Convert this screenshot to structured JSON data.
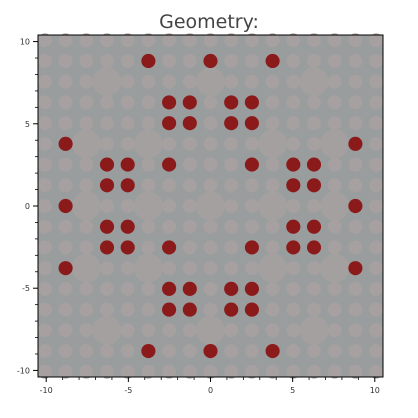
{
  "chart_data": {
    "type": "scatter",
    "title": "Geometry:",
    "xlabel": "",
    "ylabel": "",
    "xlim": [
      -10.5,
      10.5
    ],
    "ylim": [
      -10.4,
      10.4
    ],
    "grid": false,
    "x_ticks": [
      -10,
      -5,
      0,
      5,
      10
    ],
    "y_ticks": [
      10,
      5,
      0,
      -5,
      -10
    ],
    "grid_values": [
      -10.08,
      -8.82,
      -7.56,
      -6.3,
      -5.04,
      -3.78,
      -2.52,
      -1.26,
      0.0,
      1.26,
      2.52,
      3.78,
      5.04,
      6.3,
      7.56,
      8.82,
      10.08
    ],
    "colors": {
      "plot_background": "#9a9d9e",
      "cell": "#a7a0a1",
      "guide_tube": "#a4a0a0",
      "rod": "#8b1a1a",
      "frame": "#000000"
    },
    "series": [
      {
        "role": "guide_tubes",
        "points": [
          [
            -6.3,
            7.56
          ],
          [
            0.0,
            7.56
          ],
          [
            6.3,
            7.56
          ],
          [
            -7.56,
            3.78
          ],
          [
            -3.78,
            3.78
          ],
          [
            3.78,
            3.78
          ],
          [
            7.56,
            3.78
          ],
          [
            -7.56,
            0.0
          ],
          [
            -3.78,
            0.0
          ],
          [
            0.0,
            0.0
          ],
          [
            3.78,
            0.0
          ],
          [
            7.56,
            0.0
          ],
          [
            -7.56,
            -3.78
          ],
          [
            -3.78,
            -3.78
          ],
          [
            3.78,
            -3.78
          ],
          [
            7.56,
            -3.78
          ],
          [
            -6.3,
            -7.56
          ],
          [
            0.0,
            -7.56
          ],
          [
            6.3,
            -7.56
          ]
        ]
      },
      {
        "role": "rods",
        "points": [
          [
            -3.78,
            8.82
          ],
          [
            0.0,
            8.82
          ],
          [
            3.78,
            8.82
          ],
          [
            -2.52,
            6.3
          ],
          [
            -1.26,
            6.3
          ],
          [
            1.26,
            6.3
          ],
          [
            2.52,
            6.3
          ],
          [
            -2.52,
            5.04
          ],
          [
            -1.26,
            5.04
          ],
          [
            1.26,
            5.04
          ],
          [
            2.52,
            5.04
          ],
          [
            -8.82,
            3.78
          ],
          [
            8.82,
            3.78
          ],
          [
            -6.3,
            2.52
          ],
          [
            -5.04,
            2.52
          ],
          [
            -2.52,
            2.52
          ],
          [
            2.52,
            2.52
          ],
          [
            5.04,
            2.52
          ],
          [
            6.3,
            2.52
          ],
          [
            -6.3,
            1.26
          ],
          [
            -5.04,
            1.26
          ],
          [
            5.04,
            1.26
          ],
          [
            6.3,
            1.26
          ],
          [
            -8.82,
            0.0
          ],
          [
            8.82,
            0.0
          ],
          [
            -6.3,
            -1.26
          ],
          [
            -5.04,
            -1.26
          ],
          [
            5.04,
            -1.26
          ],
          [
            6.3,
            -1.26
          ],
          [
            -6.3,
            -2.52
          ],
          [
            -5.04,
            -2.52
          ],
          [
            -2.52,
            -2.52
          ],
          [
            2.52,
            -2.52
          ],
          [
            5.04,
            -2.52
          ],
          [
            6.3,
            -2.52
          ],
          [
            -8.82,
            -3.78
          ],
          [
            8.82,
            -3.78
          ],
          [
            -2.52,
            -5.04
          ],
          [
            -1.26,
            -5.04
          ],
          [
            1.26,
            -5.04
          ],
          [
            2.52,
            -5.04
          ],
          [
            -2.52,
            -6.3
          ],
          [
            -1.26,
            -6.3
          ],
          [
            1.26,
            -6.3
          ],
          [
            2.52,
            -6.3
          ],
          [
            -3.78,
            -8.82
          ],
          [
            0.0,
            -8.82
          ],
          [
            3.78,
            -8.82
          ]
        ]
      }
    ]
  }
}
